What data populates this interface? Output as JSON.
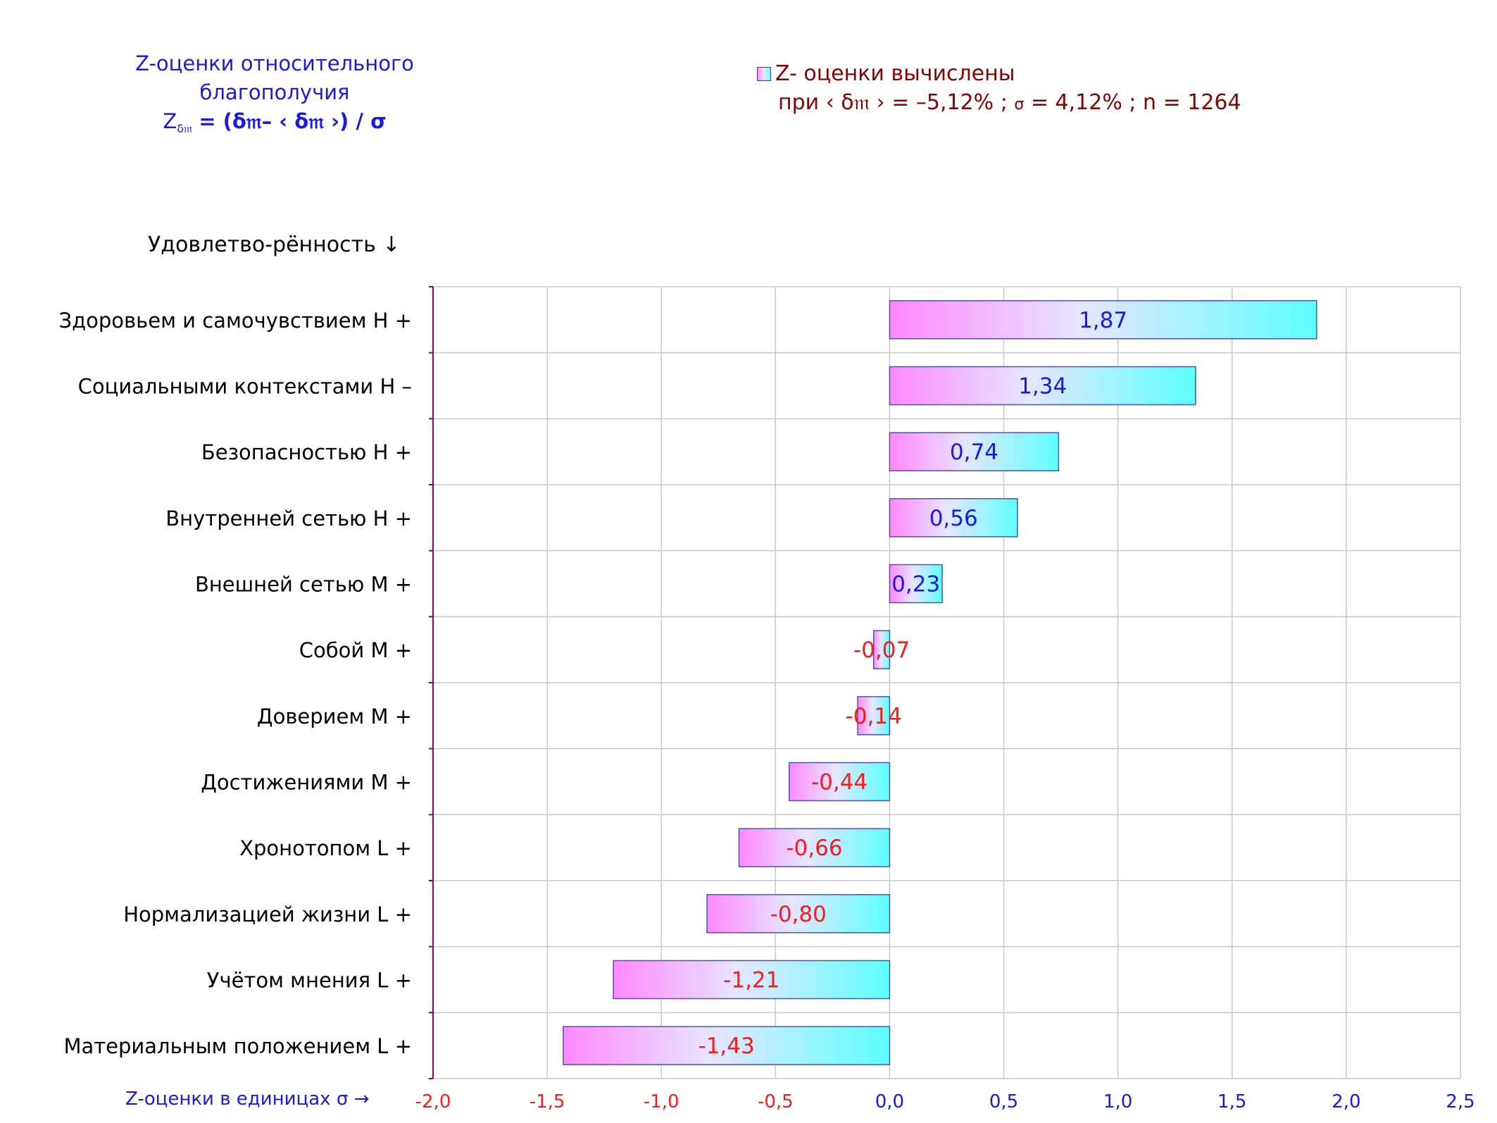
{
  "title": {
    "line1": "Z-оценки  относительного",
    "line2": "благополучия",
    "formula_z": "Z",
    "formula_sub": "δ𝔪",
    "formula_rest": "= (δ𝔪– ‹ δ𝔪 ›)  / σ"
  },
  "legend": {
    "line1": "Z- оценки вычислены",
    "line2_pre": "при ‹ δ𝔪 ›  = –5,12% ; ",
    "line2_sigma": "σ",
    "line2_post": " = 4,12% ; n = 1264"
  },
  "y_header": "Удовлетво-рённость ↓",
  "x_caption": "Z-оценки в единицах σ →",
  "colors": {
    "positive_text": "#1a1ae6",
    "negative_text": "#ff1a1a",
    "bar_left": "#ff88ff",
    "bar_mid": "#e6e6ff",
    "bar_right": "#5cffff",
    "bar_border": "#5050b0",
    "grid": "#c8c8c8",
    "axis": "#800080"
  },
  "chart_data": {
    "type": "bar",
    "orientation": "horizontal",
    "categories": [
      "Здоровьем и самочувствием  H +",
      "Социальными контекстами  H –",
      "Безопасностью  H +",
      "Внутренней сетью  H +",
      "Внешней сетью  M +",
      "Собой  M +",
      "Доверием  M +",
      "Достижениями  M +",
      "Хронотопом  L +",
      "Нормализацией жизни  L +",
      "Учётом мнения  L +",
      "Материальным положением  L +"
    ],
    "values": [
      1.87,
      1.34,
      0.74,
      0.56,
      0.23,
      -0.07,
      -0.14,
      -0.44,
      -0.66,
      -0.8,
      -1.21,
      -1.43
    ],
    "value_labels": [
      "1,87",
      "1,34",
      "0,74",
      "0,56",
      "0,23",
      "-0,07",
      "-0,14",
      "-0,44",
      "-0,66",
      "-0,80",
      "-1,21",
      "-1,43"
    ],
    "xlim": [
      -2.0,
      2.5
    ],
    "xticks": [
      -2.0,
      -1.5,
      -1.0,
      -0.5,
      0.0,
      0.5,
      1.0,
      1.5,
      2.0,
      2.5
    ],
    "xtick_labels": [
      "-2,0",
      "-1,5",
      "-1,0",
      "-0,5",
      "0,0",
      "0,5",
      "1,0",
      "1,5",
      "2,0",
      "2,5"
    ],
    "grid": true,
    "legend_position": "top-right"
  }
}
